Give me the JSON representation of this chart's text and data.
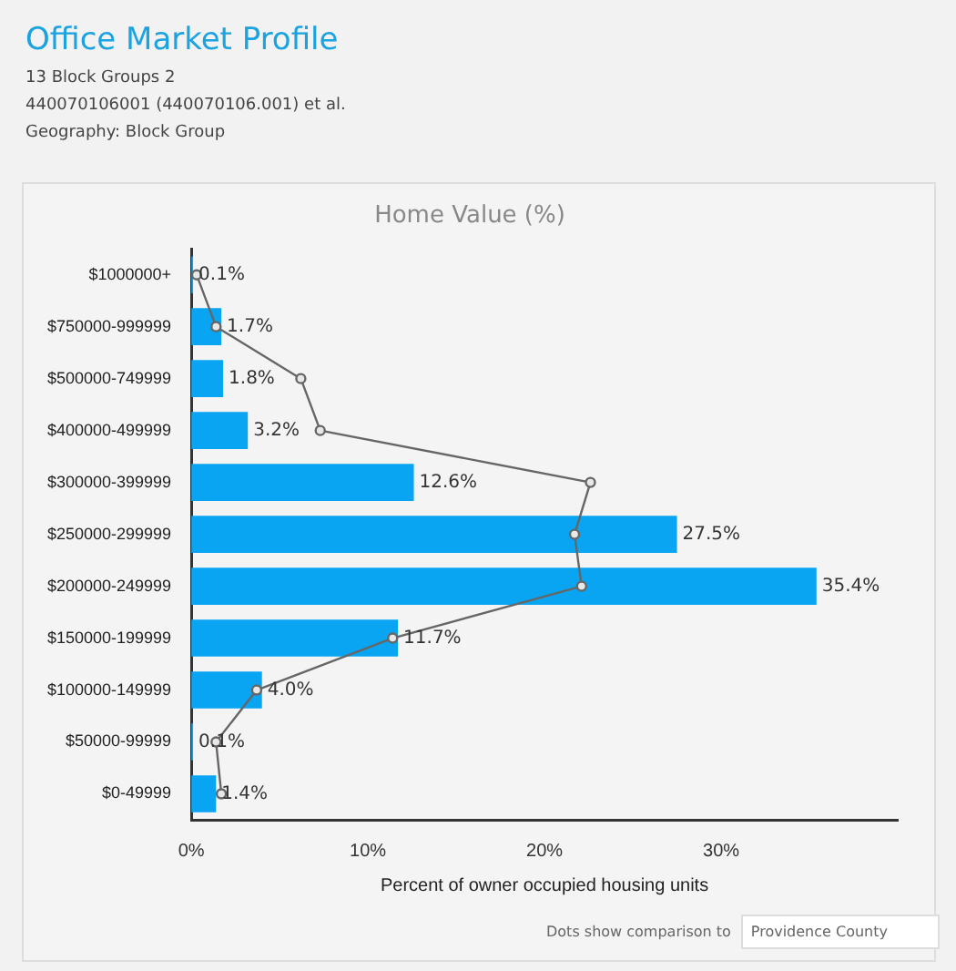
{
  "chart_data": {
    "type": "bar",
    "orientation": "horizontal",
    "title": "Home Value (%)",
    "xlabel": "Percent of owner occupied housing units",
    "categories": [
      "$1000000+",
      "$750000-999999",
      "$500000-749999",
      "$400000-499999",
      "$300000-399999",
      "$250000-299999",
      "$200000-249999",
      "$150000-199999",
      "$100000-149999",
      "$50000-99999",
      "$0-49999"
    ],
    "series": [
      {
        "color": "#0aa5f2",
        "values": [
          0.1,
          1.7,
          1.8,
          3.2,
          12.6,
          27.5,
          35.4,
          11.7,
          4.0,
          0.1,
          1.4
        ],
        "value_labels": [
          "0.1%",
          "1.7%",
          "1.8%",
          "3.2%",
          "12.6%",
          "27.5%",
          "35.4%",
          "11.7%",
          "4.0%",
          "0.1%",
          "1.4%"
        ]
      },
      {
        "type": "line",
        "color": "#666666",
        "marker": "circle",
        "line_style": "solid",
        "values": [
          0.3,
          1.4,
          6.2,
          7.3,
          22.6,
          21.7,
          22.1,
          11.4,
          3.7,
          1.4,
          1.7
        ]
      }
    ],
    "xlim": [
      0,
      40
    ],
    "xticks": [
      {
        "value": 0,
        "label": "0%"
      },
      {
        "value": 10,
        "label": "10%"
      },
      {
        "value": 20,
        "label": "20%"
      },
      {
        "value": 30,
        "label": "30%"
      }
    ],
    "grid": false,
    "legend": false,
    "annotations": [
      "Office Market Profile",
      "13 Block Groups 2",
      "440070106001 (440070106.001) et al.",
      "Geography: Block Group",
      "Dots show comparison to",
      "Providence County"
    ]
  }
}
